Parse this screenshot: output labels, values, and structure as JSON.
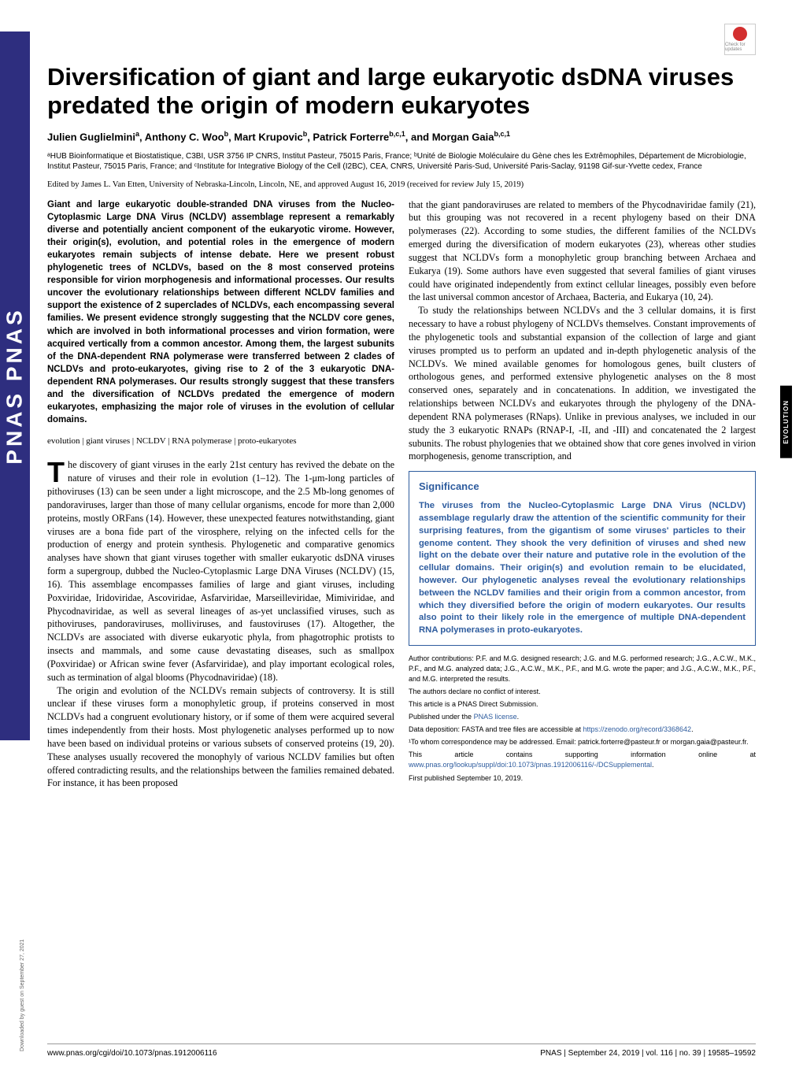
{
  "banner": {
    "pnas": "PNAS PNAS"
  },
  "check_updates": "Check for updates",
  "title": "Diversification of giant and large eukaryotic dsDNA viruses predated the origin of modern eukaryotes",
  "authors_html": "Julien Guglielmini<sup>a</sup>, Anthony C. Woo<sup>b</sup>, Mart Krupovic<sup>b</sup>, Patrick Forterre<sup>b,c,1</sup>, and Morgan Gaia<sup>b,c,1</sup>",
  "affiliations": "ᵃHUB Bioinformatique et Biostatistique, C3BI, USR 3756 IP CNRS, Institut Pasteur, 75015 Paris, France; ᵇUnité de Biologie Moléculaire du Gène ches les Extrêmophiles, Département de Microbiologie, Institut Pasteur, 75015 Paris, France; and ᶜInstitute for Integrative Biology of the Cell (I2BC), CEA, CNRS, Université Paris-Sud, Université Paris-Saclay, 91198 Gif-sur-Yvette cedex, France",
  "edited": "Edited by James L. Van Etten, University of Nebraska-Lincoln, Lincoln, NE, and approved August 16, 2019 (received for review July 15, 2019)",
  "abstract": "Giant and large eukaryotic double-stranded DNA viruses from the Nucleo-Cytoplasmic Large DNA Virus (NCLDV) assemblage represent a remarkably diverse and potentially ancient component of the eukaryotic virome. However, their origin(s), evolution, and potential roles in the emergence of modern eukaryotes remain subjects of intense debate. Here we present robust phylogenetic trees of NCLDVs, based on the 8 most conserved proteins responsible for virion morphogenesis and informational processes. Our results uncover the evolutionary relationships between different NCLDV families and support the existence of 2 superclades of NCLDVs, each encompassing several families. We present evidence strongly suggesting that the NCLDV core genes, which are involved in both informational processes and virion formation, were acquired vertically from a common ancestor. Among them, the largest subunits of the DNA-dependent RNA polymerase were transferred between 2 clades of NCLDVs and proto-eukaryotes, giving rise to 2 of the 3 eukaryotic DNA-dependent RNA polymerases. Our results strongly suggest that these transfers and the diversification of NCLDVs predated the emergence of modern eukaryotes, emphasizing the major role of viruses in the evolution of cellular domains.",
  "keywords": "evolution | giant viruses | NCLDV | RNA polymerase | proto-eukaryotes",
  "body_col1_p1": "he discovery of giant viruses in the early 21st century has revived the debate on the nature of viruses and their role in evolution (1–12). The 1-μm-long particles of pithoviruses (13) can be seen under a light microscope, and the 2.5 Mb-long genomes of pandoraviruses, larger than those of many cellular organisms, encode for more than 2,000 proteins, mostly ORFans (14). However, these unexpected features notwithstanding, giant viruses are a bona fide part of the virosphere, relying on the infected cells for the production of energy and protein synthesis. Phylogenetic and comparative genomics analyses have shown that giant viruses together with smaller eukaryotic dsDNA viruses form a supergroup, dubbed the Nucleo-Cytoplasmic Large DNA Viruses (NCLDV) (15, 16). This assemblage encompasses families of large and giant viruses, including Poxviridae, Iridoviridae, Ascoviridae, Asfarviridae, Marseilleviridae, Mimiviridae, and Phycodnaviridae, as well as several lineages of as-yet unclassified viruses, such as pithoviruses, pandoraviruses, molliviruses, and faustoviruses (17). Altogether, the NCLDVs are associated with diverse eukaryotic phyla, from phagotrophic protists to insects and mammals, and some cause devastating diseases, such as smallpox (Poxviridae) or African swine fever (Asfarviridae), and play important ecological roles, such as termination of algal blooms (Phycodnaviridae) (18).",
  "body_col1_p2": "The origin and evolution of the NCLDVs remain subjects of controversy. It is still unclear if these viruses form a monophyletic group, if proteins conserved in most NCLDVs had a congruent evolutionary history, or if some of them were acquired several times independently from their hosts. Most phylogenetic analyses performed up to now have been based on individual proteins or various subsets of conserved proteins (19, 20). These analyses usually recovered the monophyly of various NCLDV families but often offered contradicting results, and the relationships between the families remained debated. For instance, it has been proposed",
  "body_col2_p1": "that the giant pandoraviruses are related to members of the Phycodnaviridae family (21), but this grouping was not recovered in a recent phylogeny based on their DNA polymerases (22). According to some studies, the different families of the NCLDVs emerged during the diversification of modern eukaryotes (23), whereas other studies suggest that NCLDVs form a monophyletic group branching between Archaea and Eukarya (19). Some authors have even suggested that several families of giant viruses could have originated independently from extinct cellular lineages, possibly even before the last universal common ancestor of Archaea, Bacteria, and Eukarya (10, 24).",
  "body_col2_p2": "To study the relationships between NCLDVs and the 3 cellular domains, it is first necessary to have a robust phylogeny of NCLDVs themselves. Constant improvements of the phylogenetic tools and substantial expansion of the collection of large and giant viruses prompted us to perform an updated and in-depth phylogenetic analysis of the NCLDVs. We mined available genomes for homologous genes, built clusters of orthologous genes, and performed extensive phylogenetic analyses on the 8 most conserved ones, separately and in concatenations. In addition, we investigated the relationships between NCLDVs and eukaryotes through the phylogeny of the DNA-dependent RNA polymerases (RNaps). Unlike in previous analyses, we included in our study the 3 eukaryotic RNAPs (RNAP-I, -II, and -III) and concatenated the 2 largest subunits. The robust phylogenies that we obtained show that core genes involved in virion morphogenesis, genome transcription, and",
  "significance": {
    "title": "Significance",
    "body": "The viruses from the Nucleo-Cytoplasmic Large DNA Virus (NCLDV) assemblage regularly draw the attention of the scientific community for their surprising features, from the gigantism of some viruses' particles to their genome content. They shook the very definition of viruses and shed new light on the debate over their nature and putative role in the evolution of the cellular domains. Their origin(s) and evolution remain to be elucidated, however. Our phylogenetic analyses reveal the evolutionary relationships between the NCLDV families and their origin from a common ancestor, from which they diversified before the origin of modern eukaryotes. Our results also point to their likely role in the emergence of multiple DNA-dependent RNA polymerases in proto-eukaryotes."
  },
  "footnotes": {
    "contrib": "Author contributions: P.F. and M.G. designed research; J.G. and M.G. performed research; J.G., A.C.W., M.K., P.F., and M.G. analyzed data; J.G., A.C.W., M.K., P.F., and M.G. wrote the paper; and J.G., A.C.W., M.K., P.F., and M.G. interpreted the results.",
    "conflict": "The authors declare no conflict of interest.",
    "direct": "This article is a PNAS Direct Submission.",
    "license_pre": "Published under the ",
    "license_link": "PNAS license",
    "license_post": ".",
    "data_pre": "Data deposition: FASTA and tree files are accessible at ",
    "data_link": "https://zenodo.org/record/3368642",
    "data_post": ".",
    "corr": "¹To whom correspondence may be addressed. Email: patrick.forterre@pasteur.fr or morgan.gaia@pasteur.fr.",
    "supp_pre": "This article contains supporting information online at ",
    "supp_link": "www.pnas.org/lookup/suppl/doi:10.1073/pnas.1912006116/-/DCSupplemental",
    "supp_post": ".",
    "pub": "First published September 10, 2019."
  },
  "side_label": "EVOLUTION",
  "download": "Downloaded by guest on September 27, 2021",
  "footer": {
    "doi": "www.pnas.org/cgi/doi/10.1073/pnas.1912006116",
    "citation": "PNAS | September 24, 2019 | vol. 116 | no. 39 | 19585–19592"
  },
  "colors": {
    "pnas_blue": "#2e2e7f",
    "link_blue": "#2e5c9e",
    "check_red": "#d32f2f"
  }
}
